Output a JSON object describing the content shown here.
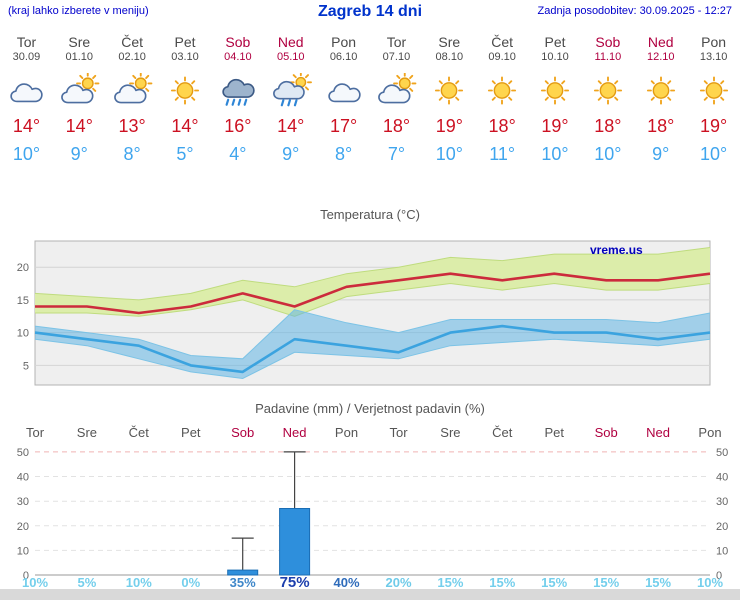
{
  "header": {
    "hint": "(kraj lahko izberete v meniju)",
    "title": "Zagreb 14 dni",
    "updated": "Zadnja posodobitev: 30.09.2025 - 12:27"
  },
  "days": [
    {
      "name": "Tor",
      "date": "30.09",
      "weekend": false,
      "icon": "cloud",
      "tmax": "14°",
      "tmin": "10°"
    },
    {
      "name": "Sre",
      "date": "01.10",
      "weekend": false,
      "icon": "sun-cloud",
      "tmax": "14°",
      "tmin": "9°"
    },
    {
      "name": "Čet",
      "date": "02.10",
      "weekend": false,
      "icon": "sun-cloud",
      "tmax": "13°",
      "tmin": "8°"
    },
    {
      "name": "Pet",
      "date": "03.10",
      "weekend": false,
      "icon": "sun",
      "tmax": "14°",
      "tmin": "5°"
    },
    {
      "name": "Sob",
      "date": "04.10",
      "weekend": true,
      "icon": "rain",
      "tmax": "16°",
      "tmin": "4°"
    },
    {
      "name": "Ned",
      "date": "05.10",
      "weekend": true,
      "icon": "sun-rain",
      "tmax": "14°",
      "tmin": "9°"
    },
    {
      "name": "Pon",
      "date": "06.10",
      "weekend": false,
      "icon": "cloud",
      "tmax": "17°",
      "tmin": "8°"
    },
    {
      "name": "Tor",
      "date": "07.10",
      "weekend": false,
      "icon": "sun-cloud",
      "tmax": "18°",
      "tmin": "7°"
    },
    {
      "name": "Sre",
      "date": "08.10",
      "weekend": false,
      "icon": "sun",
      "tmax": "19°",
      "tmin": "10°"
    },
    {
      "name": "Čet",
      "date": "09.10",
      "weekend": false,
      "icon": "sun",
      "tmax": "18°",
      "tmin": "11°"
    },
    {
      "name": "Pet",
      "date": "10.10",
      "weekend": false,
      "icon": "sun",
      "tmax": "19°",
      "tmin": "10°"
    },
    {
      "name": "Sob",
      "date": "11.10",
      "weekend": true,
      "icon": "sun",
      "tmax": "18°",
      "tmin": "10°"
    },
    {
      "name": "Ned",
      "date": "12.10",
      "weekend": true,
      "icon": "sun",
      "tmax": "18°",
      "tmin": "9°"
    },
    {
      "name": "Pon",
      "date": "13.10",
      "weekend": false,
      "icon": "sun",
      "tmax": "19°",
      "tmin": "10°"
    }
  ],
  "chart_data": [
    {
      "type": "area",
      "title": "Temperatura (°C)",
      "watermark": "vreme.us",
      "x_labels": [
        "Tor",
        "Sre",
        "Čet",
        "Pet",
        "Sob",
        "Ned",
        "Pon",
        "Tor",
        "Sre",
        "Čet",
        "Pet",
        "Sob",
        "Ned",
        "Pon"
      ],
      "ylim": [
        2,
        24
      ],
      "yticks": [
        5,
        10,
        15,
        20
      ],
      "legend_position": "none",
      "grid": true,
      "series": [
        {
          "name": "tmax",
          "color": "#cc2b3c",
          "values": [
            14,
            14,
            13,
            14,
            16,
            14,
            17,
            18,
            19,
            18,
            19,
            18,
            18,
            19
          ]
        },
        {
          "name": "tmax_upper",
          "values": [
            16,
            15.5,
            15,
            16,
            18,
            17,
            19,
            20,
            21.5,
            21,
            22,
            22,
            22,
            23
          ]
        },
        {
          "name": "tmax_lower",
          "values": [
            13,
            13,
            12.5,
            13.5,
            15,
            12.5,
            15.5,
            16.5,
            17.5,
            16.5,
            17.5,
            16.5,
            16.5,
            17.5
          ]
        },
        {
          "name": "tmin",
          "color": "#3ba3df",
          "values": [
            10,
            9,
            8,
            5,
            4,
            9,
            8,
            7,
            10,
            11,
            10,
            10,
            9,
            10
          ]
        },
        {
          "name": "tmin_upper",
          "values": [
            11,
            10,
            9,
            6.5,
            6,
            13.5,
            11.5,
            10,
            12,
            12,
            12,
            12,
            11.5,
            13
          ]
        },
        {
          "name": "tmin_lower",
          "values": [
            9,
            8,
            6,
            4,
            3,
            7,
            6.5,
            6,
            8,
            8.5,
            9,
            8.5,
            8,
            9
          ]
        }
      ],
      "band_colors": {
        "max_band": "#dcedaa",
        "max_edge": "#bfdc7e",
        "min_band": "rgba(96,181,228,0.55)",
        "min_edge": "#7cc3e6"
      }
    },
    {
      "type": "bar",
      "title": "Padavine (mm) / Verjetnost padavin (%)",
      "categories": [
        "Tor",
        "Sre",
        "Čet",
        "Pet",
        "Sob",
        "Ned",
        "Pon",
        "Tor",
        "Sre",
        "Čet",
        "Pet",
        "Sob",
        "Ned",
        "Pon"
      ],
      "weekend": [
        false,
        false,
        false,
        false,
        true,
        true,
        false,
        false,
        false,
        false,
        false,
        true,
        true,
        false
      ],
      "values": [
        0,
        0,
        0,
        0,
        2,
        27,
        0,
        0,
        0,
        0,
        0,
        0,
        0,
        0
      ],
      "whisker_max": [
        0,
        0,
        0,
        0,
        15,
        50,
        0,
        0,
        0,
        0,
        0,
        0,
        0,
        0
      ],
      "ylim": [
        0,
        52
      ],
      "yticks": [
        0,
        10,
        20,
        30,
        40,
        50
      ],
      "bar_color": "#2e8fdc",
      "bar_edge": "#1a6db4",
      "probabilities": [
        {
          "text": "10%",
          "color": "#74cfec",
          "emph": false
        },
        {
          "text": "5%",
          "color": "#74cfec",
          "emph": false
        },
        {
          "text": "10%",
          "color": "#74cfec",
          "emph": false
        },
        {
          "text": "0%",
          "color": "#74cfec",
          "emph": false
        },
        {
          "text": "35%",
          "color": "#3f87c9",
          "emph": false
        },
        {
          "text": "75%",
          "color": "#1c3fad",
          "emph": true
        },
        {
          "text": "40%",
          "color": "#2f6cbb",
          "emph": false
        },
        {
          "text": "20%",
          "color": "#6fcbe9",
          "emph": false
        },
        {
          "text": "15%",
          "color": "#74cfec",
          "emph": false
        },
        {
          "text": "15%",
          "color": "#74cfec",
          "emph": false
        },
        {
          "text": "15%",
          "color": "#74cfec",
          "emph": false
        },
        {
          "text": "15%",
          "color": "#74cfec",
          "emph": false
        },
        {
          "text": "15%",
          "color": "#74cfec",
          "emph": false
        },
        {
          "text": "10%",
          "color": "#74cfec",
          "emph": false
        }
      ]
    }
  ],
  "colors": {
    "link_blue": "#0000cc",
    "title_blue": "#0033cc",
    "weekend_red": "#b00040",
    "tmax_red": "#cc1122",
    "tmin_blue": "#3fa5ee"
  }
}
